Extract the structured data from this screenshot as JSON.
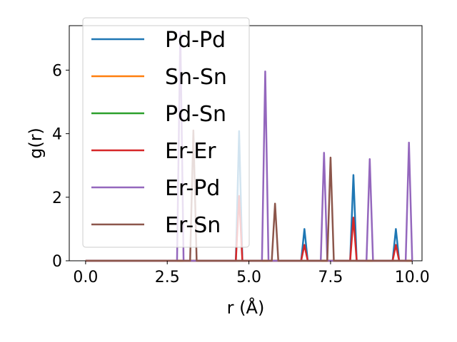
{
  "chart_data": {
    "type": "line",
    "title": "",
    "xlabel": "r (Å)",
    "ylabel": "g(r)",
    "xlim": [
      -0.5,
      10.3
    ],
    "ylim": [
      0,
      7.4
    ],
    "xticks": [
      0.0,
      2.5,
      5.0,
      7.5,
      10.0
    ],
    "xtick_labels": [
      "0.0",
      "2.5",
      "5.0",
      "7.5",
      "10.0"
    ],
    "yticks": [
      0,
      2,
      4,
      6
    ],
    "ytick_labels": [
      "0",
      "2",
      "4",
      "6"
    ],
    "grid": false,
    "legend_position": "upper-left",
    "series": [
      {
        "name": "Pd-Pd",
        "color": "#1f77b4",
        "peaks": [
          [
            4.7,
            4.08
          ],
          [
            6.7,
            1.0
          ],
          [
            8.2,
            2.7
          ],
          [
            9.5,
            1.0
          ]
        ]
      },
      {
        "name": "Sn-Sn",
        "color": "#ff7f0e",
        "peaks": []
      },
      {
        "name": "Pd-Sn",
        "color": "#2ca02c",
        "peaks": []
      },
      {
        "name": "Er-Er",
        "color": "#d62728",
        "peaks": [
          [
            4.7,
            2.04
          ],
          [
            6.7,
            0.5
          ],
          [
            8.2,
            1.36
          ],
          [
            9.5,
            0.5
          ]
        ]
      },
      {
        "name": "Er-Pd",
        "color": "#9467bd",
        "peaks": [
          [
            2.9,
            7.2
          ],
          [
            5.5,
            5.96
          ],
          [
            7.3,
            3.4
          ],
          [
            8.7,
            3.2
          ],
          [
            9.9,
            3.72
          ]
        ]
      },
      {
        "name": "Er-Sn",
        "color": "#8c564b",
        "peaks": [
          [
            3.3,
            4.1
          ],
          [
            5.8,
            1.8
          ],
          [
            7.5,
            3.25
          ]
        ]
      }
    ]
  }
}
